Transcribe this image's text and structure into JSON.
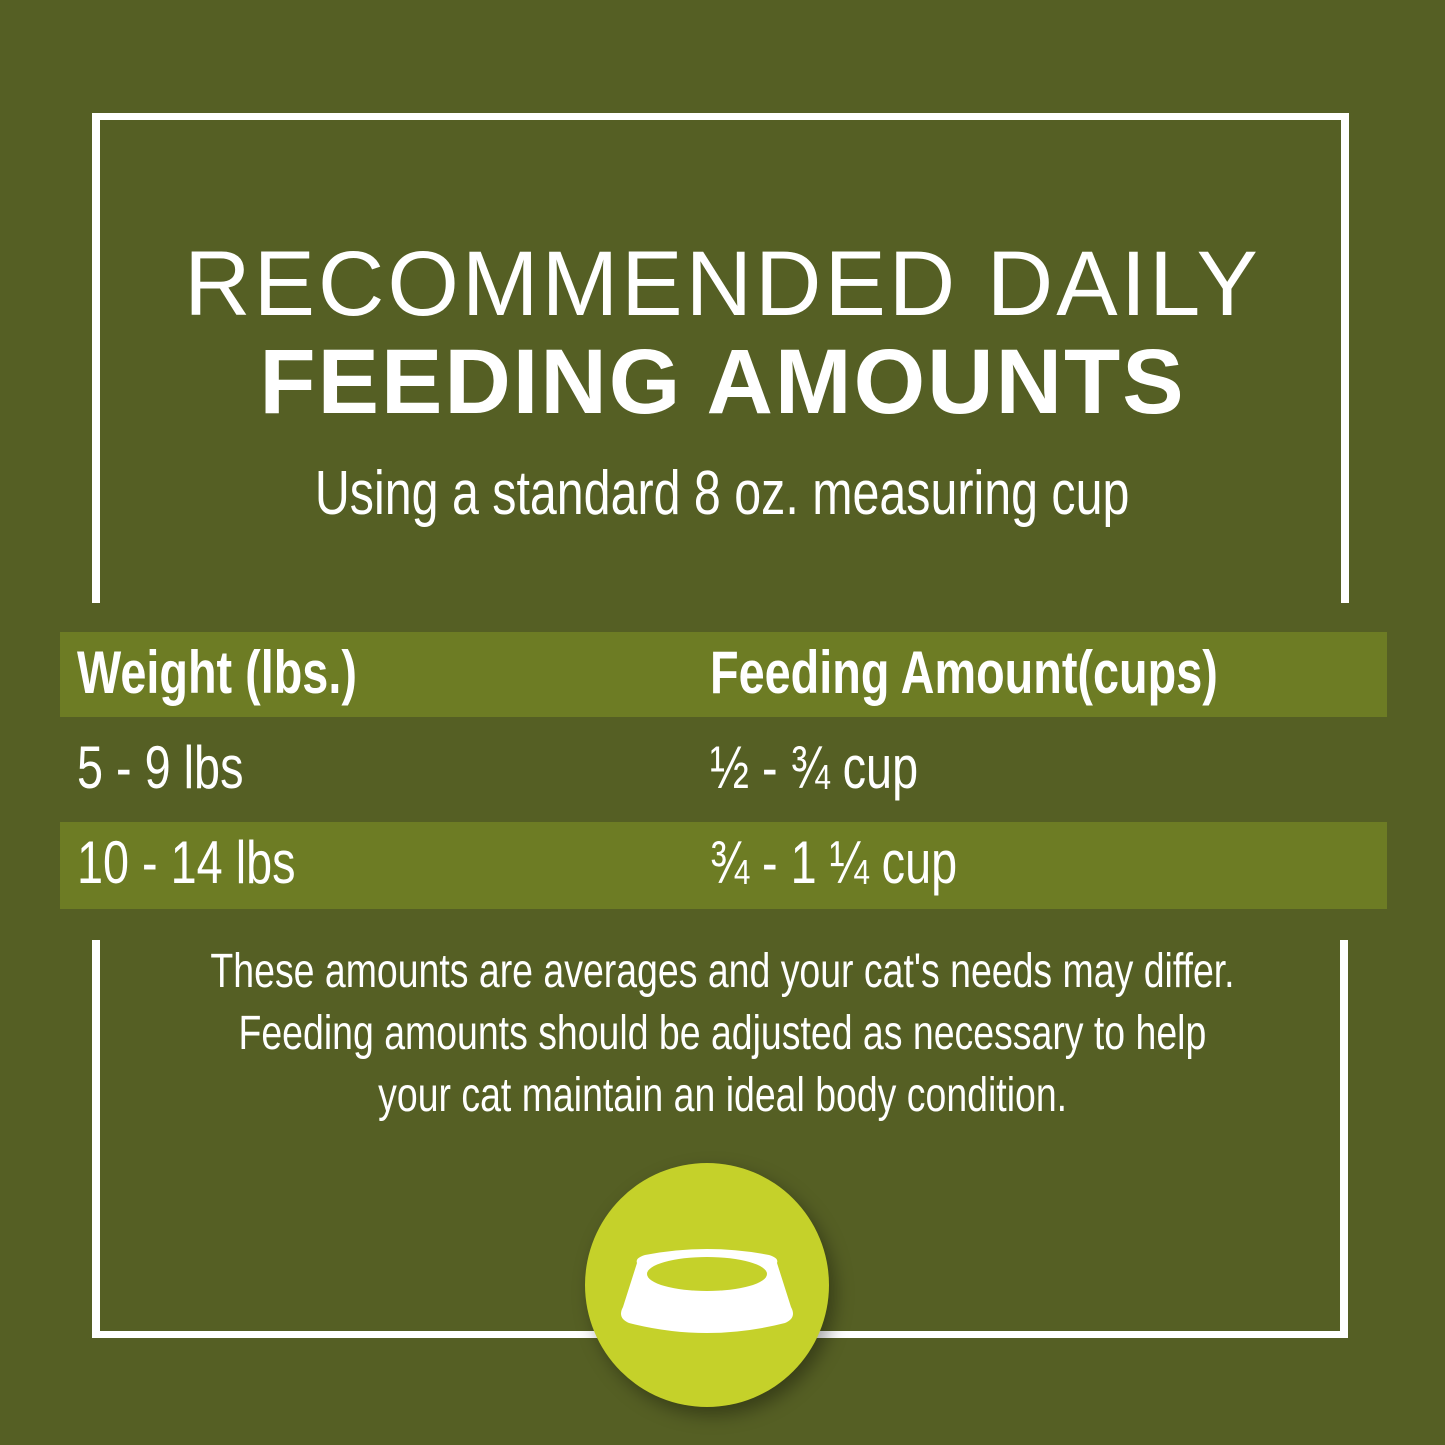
{
  "title": {
    "line1": "RECOMMENDED DAILY",
    "line2": "FEEDING AMOUNTS",
    "subtitle": "Using a standard 8 oz. measuring cup"
  },
  "table": {
    "headers": [
      "Weight (lbs.)",
      "Feeding Amount(cups)"
    ],
    "rows": [
      [
        "5 - 9 lbs",
        "½ - ¾ cup"
      ],
      [
        "10 - 14 lbs",
        "¾ - 1 ¼ cup"
      ]
    ]
  },
  "note": {
    "lines": [
      "These amounts are averages and your cat's needs may differ.",
      "Feeding amounts should be adjusted as necessary to help",
      "your cat maintain an ideal body condition."
    ]
  },
  "icon": "food-bowl-icon",
  "colors": {
    "background": "#555f24",
    "band": "#6d7c24",
    "circle": "#c5d12a",
    "text": "#ffffff"
  }
}
